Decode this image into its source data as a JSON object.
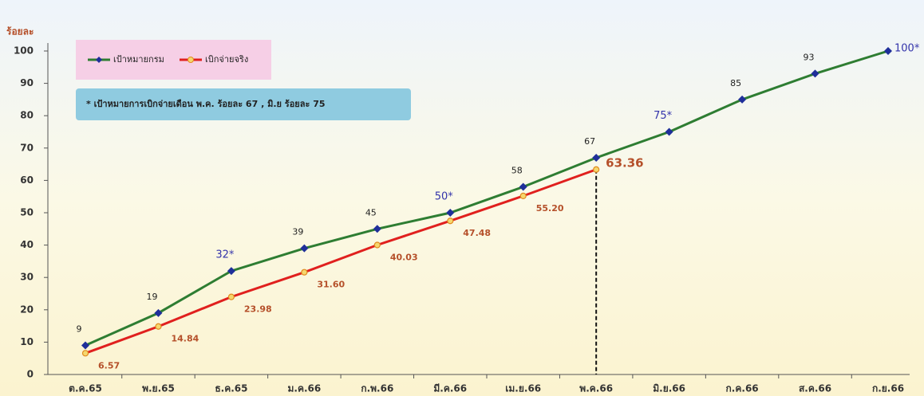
{
  "chart_data": {
    "type": "line",
    "y_label": "ร้อยละ",
    "annotation": "* เป้าหมายการเบิกจ่ายเดือน  พ.ค. ร้อยละ 67 , มิ.ย ร้อยละ 75",
    "categories": [
      "ต.ค.65",
      "พ.ย.65",
      "ธ.ค.65",
      "ม.ค.66",
      "ก.พ.66",
      "มี.ค.66",
      "เม.ย.66",
      "พ.ค.66",
      "มิ.ย.66",
      "ก.ค.66",
      "ส.ค.66",
      "ก.ย.66"
    ],
    "series": [
      {
        "name": "เป้าหมายกรม",
        "color": "#2e7d32",
        "marker_color": "#1f2f9a",
        "label_color": "#222222",
        "values": [
          9,
          19,
          32,
          39,
          45,
          50,
          58,
          67,
          75,
          85,
          93,
          100
        ],
        "value_labels": [
          "9",
          "19",
          "32*",
          "39",
          "45",
          "50*",
          "58",
          "67",
          "75*",
          "85",
          "93",
          "100*"
        ]
      },
      {
        "name": "เบิกจ่ายจริง",
        "color": "#e0201e",
        "marker_color": "#f5d76e",
        "label_color": "#b5502a",
        "values": [
          6.57,
          14.84,
          23.98,
          31.6,
          40.03,
          47.48,
          55.2,
          63.36,
          null,
          null,
          null,
          null
        ],
        "value_labels": [
          "6.57",
          "14.84",
          "23.98",
          "31.60",
          "40.03",
          "47.48",
          "55.20",
          "63.36",
          null,
          null,
          null,
          null
        ]
      }
    ],
    "highlight_color": "#3333aa",
    "ylim": [
      0,
      100
    ],
    "yticks": [
      0,
      10,
      20,
      30,
      40,
      50,
      60,
      70,
      80,
      90,
      100
    ]
  }
}
